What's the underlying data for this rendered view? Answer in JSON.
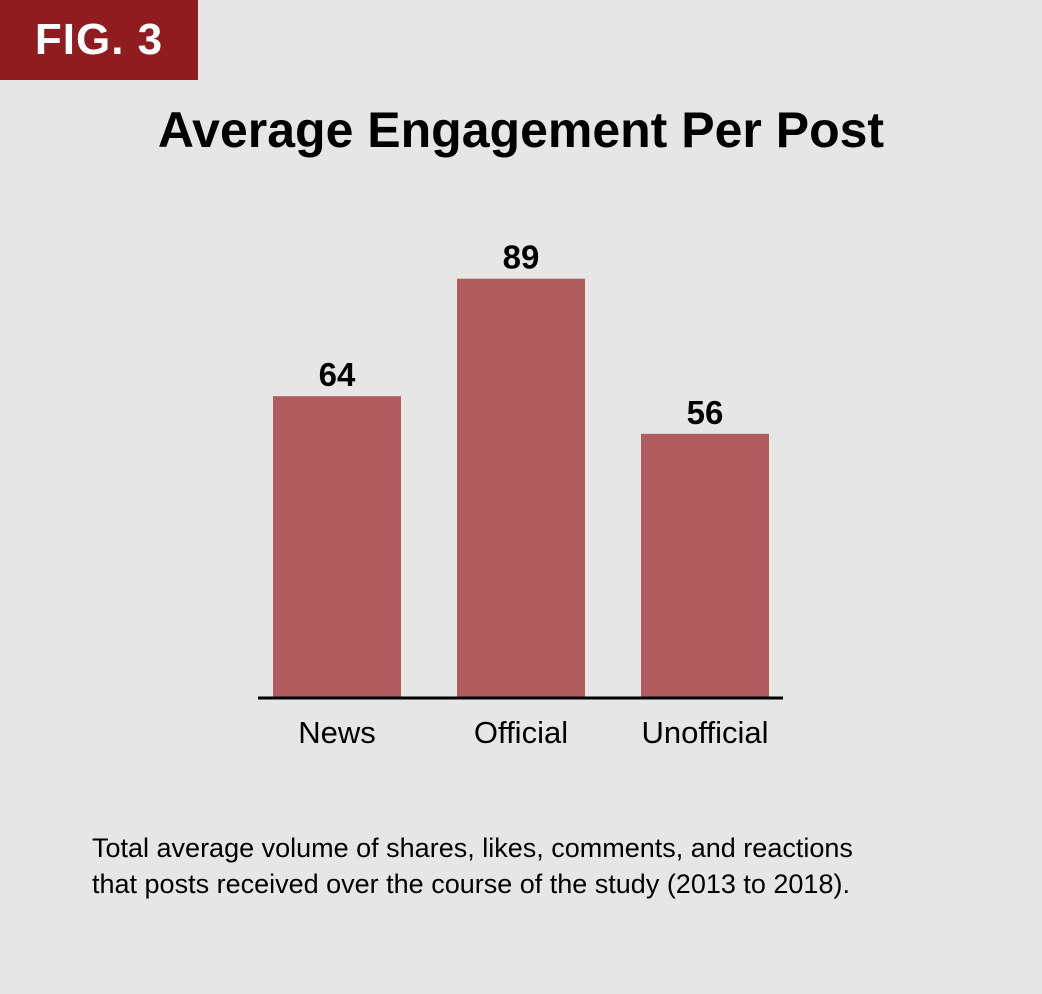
{
  "fig_label": "FIG. 3",
  "caption": {
    "line1": "Total average volume of shares, likes, comments, and reactions",
    "line2": "that posts received over the course of the study (2013 to 2018)."
  },
  "colors": {
    "background": "#e6e6e6",
    "label_box": "#901c20",
    "bar": "#b05c5e",
    "axis": "#000000"
  },
  "chart_data": {
    "type": "bar",
    "title": "Average Engagement Per Post",
    "categories": [
      "News",
      "Official",
      "Unofficial"
    ],
    "values": [
      64,
      89,
      56
    ],
    "data_labels": [
      "64",
      "89",
      "56"
    ],
    "xlabel": "",
    "ylabel": "",
    "ylim": [
      0,
      100
    ],
    "grid": false,
    "legend": "none"
  }
}
